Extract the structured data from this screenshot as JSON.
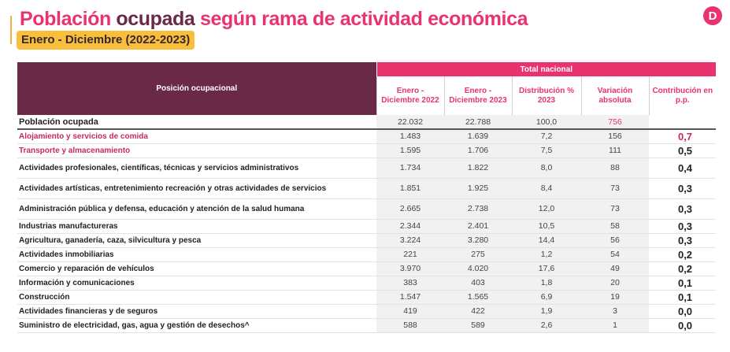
{
  "title": {
    "part1": "Población",
    "part2": "ocupada",
    "part3": "según rama de actividad económica"
  },
  "subtitle": "Enero - Diciembre (2022-2023)",
  "logo_letter": "D",
  "colors": {
    "pink": "#e8336e",
    "plum": "#6b2948",
    "amber": "#f7bf3c"
  },
  "table": {
    "position_header": "Posición ocupacional",
    "group_header": "Total nacional",
    "columns": [
      "Enero - Diciembre 2022",
      "Enero - Diciembre 2023",
      "Distribución % 2023",
      "Variación absoluta",
      "Contribución en p.p."
    ],
    "total_row": {
      "name": "Población ocupada",
      "v2022": "22.032",
      "v2023": "22.788",
      "dist": "100,0",
      "var": "756",
      "contrib": ""
    },
    "rows": [
      {
        "name": "Alojamiento y servicios de comida",
        "v2022": "1.483",
        "v2023": "1.639",
        "dist": "7,2",
        "var": "156",
        "contrib": "0,7"
      },
      {
        "name": "Transporte y almacenamiento",
        "v2022": "1.595",
        "v2023": "1.706",
        "dist": "7,5",
        "var": "111",
        "contrib": "0,5"
      },
      {
        "name": "Actividades profesionales, científicas, técnicas y servicios administrativos",
        "v2022": "1.734",
        "v2023": "1.822",
        "dist": "8,0",
        "var": "88",
        "contrib": "0,4"
      },
      {
        "name": "Actividades artísticas, entretenimiento recreación y otras actividades de servicios",
        "v2022": "1.851",
        "v2023": "1.925",
        "dist": "8,4",
        "var": "73",
        "contrib": "0,3"
      },
      {
        "name": "Administración pública y defensa, educación y atención de la salud humana",
        "v2022": "2.665",
        "v2023": "2.738",
        "dist": "12,0",
        "var": "73",
        "contrib": "0,3"
      },
      {
        "name": "Industrias manufactureras",
        "v2022": "2.344",
        "v2023": "2.401",
        "dist": "10,5",
        "var": "58",
        "contrib": "0,3"
      },
      {
        "name": "Agricultura, ganadería, caza, silvicultura y pesca",
        "v2022": "3.224",
        "v2023": "3.280",
        "dist": "14,4",
        "var": "56",
        "contrib": "0,3"
      },
      {
        "name": "Actividades inmobiliarias",
        "v2022": "221",
        "v2023": "275",
        "dist": "1,2",
        "var": "54",
        "contrib": "0,2"
      },
      {
        "name": "Comercio y reparación de vehículos",
        "v2022": "3.970",
        "v2023": "4.020",
        "dist": "17,6",
        "var": "49",
        "contrib": "0,2"
      },
      {
        "name": "Información y comunicaciones",
        "v2022": "383",
        "v2023": "403",
        "dist": "1,8",
        "var": "20",
        "contrib": "0,1"
      },
      {
        "name": "Construcción",
        "v2022": "1.547",
        "v2023": "1.565",
        "dist": "6,9",
        "var": "19",
        "contrib": "0,1"
      },
      {
        "name": "Actividades financieras y de seguros",
        "v2022": "419",
        "v2023": "422",
        "dist": "1,9",
        "var": "3",
        "contrib": "0,0"
      },
      {
        "name": "Suministro de electricidad, gas, agua y gestión de desechos^",
        "v2022": "588",
        "v2023": "589",
        "dist": "2,6",
        "var": "1",
        "contrib": "0,0"
      }
    ]
  }
}
